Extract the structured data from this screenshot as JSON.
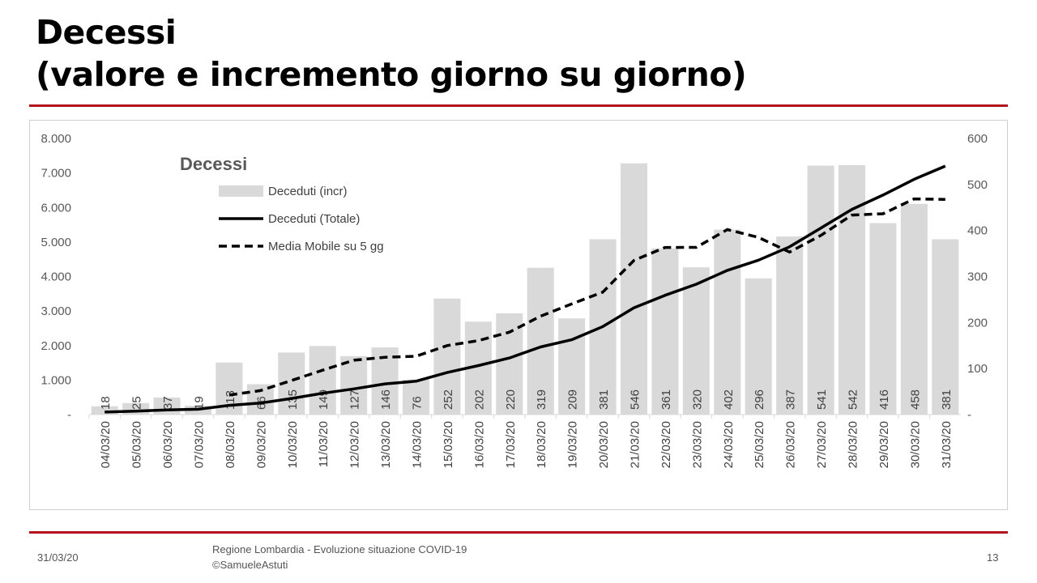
{
  "slide": {
    "title_line1": "Decessi",
    "title_line2": "(valore e incremento giorno su giorno)",
    "footer_date": "31/03/20",
    "footer_text1": "Regione Lombardia - Evoluzione situazione COVID-19",
    "footer_text2": "©SamueleAstuti",
    "page_number": "13",
    "accent_color": "#b3141b"
  },
  "chart_data": {
    "type": "bar",
    "title": "Decessi",
    "categories": [
      "04/03/20",
      "05/03/20",
      "06/03/20",
      "07/03/20",
      "08/03/20",
      "09/03/20",
      "10/03/20",
      "11/03/20",
      "12/03/20",
      "13/03/20",
      "14/03/20",
      "15/03/20",
      "16/03/20",
      "17/03/20",
      "18/03/20",
      "19/03/20",
      "20/03/20",
      "21/03/20",
      "22/03/20",
      "23/03/20",
      "24/03/20",
      "25/03/20",
      "26/03/20",
      "27/03/20",
      "28/03/20",
      "29/03/20",
      "30/03/20",
      "31/03/20"
    ],
    "series": [
      {
        "name": "Deceduti (incr)",
        "type": "bar",
        "axis": "right",
        "color": "#d9d9d9",
        "values": [
          18,
          25,
          37,
          19,
          113,
          66,
          135,
          149,
          127,
          146,
          76,
          252,
          202,
          220,
          319,
          209,
          381,
          546,
          361,
          320,
          402,
          296,
          387,
          541,
          542,
          416,
          458,
          381
        ]
      },
      {
        "name": "Deceduti (Totale)",
        "type": "line",
        "axis": "left",
        "color": "#000000",
        "values": [
          73,
          98,
          135,
          154,
          267,
          333,
          468,
          617,
          744,
          890,
          966,
          1218,
          1420,
          1640,
          1959,
          2168,
          2549,
          3095,
          3456,
          3776,
          4178,
          4474,
          4861,
          5402,
          5944,
          6360,
          6818,
          7199
        ]
      },
      {
        "name": "Media Mobile su 5 gg",
        "type": "dashed-line",
        "axis": "right",
        "color": "#000000",
        "values": [
          null,
          null,
          null,
          null,
          42.4,
          52,
          74,
          96.4,
          118,
          124.6,
          126.6,
          150,
          160.6,
          179.2,
          213.8,
          240.4,
          266.2,
          335,
          363.2,
          363.4,
          402,
          385,
          353.2,
          389.2,
          433.6,
          436.4,
          468.8,
          467.6
        ]
      }
    ],
    "left_axis": {
      "range": [
        0,
        8000
      ],
      "ticks": [
        "-",
        "1.000",
        "2.000",
        "3.000",
        "4.000",
        "5.000",
        "6.000",
        "7.000",
        "8.000"
      ]
    },
    "right_axis": {
      "range": [
        0,
        600
      ],
      "ticks": [
        "-",
        "100",
        "200",
        "300",
        "400",
        "500",
        "600"
      ]
    },
    "legend_position": "top-left",
    "grid": false
  }
}
